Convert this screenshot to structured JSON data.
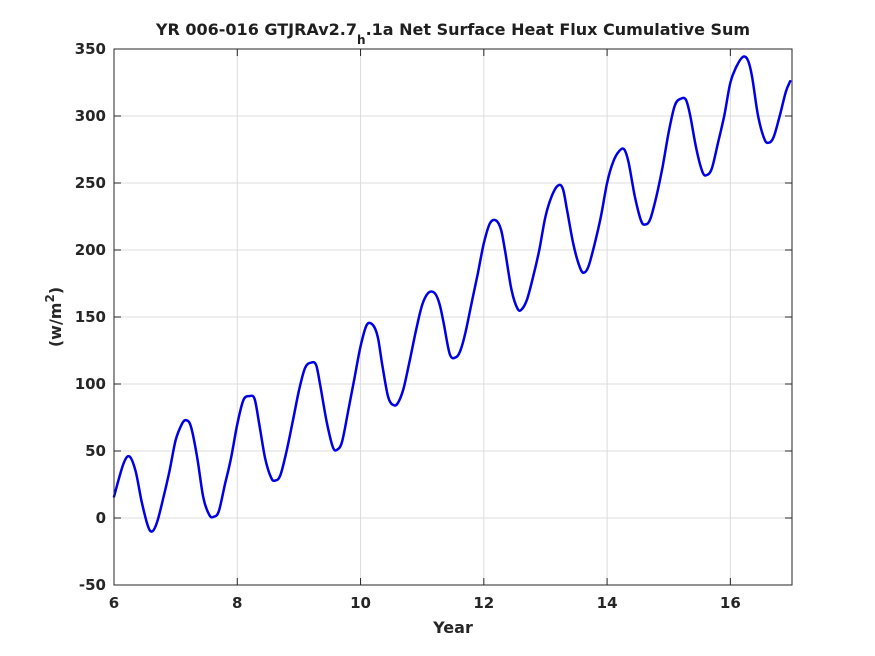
{
  "chart_data": {
    "type": "line",
    "title": {
      "pre": "YR 006-016 GTJRAv2.7",
      "sub": "h",
      "post": ".1a Net Surface Heat Flux  Cumulative Sum"
    },
    "xlabel": "Year",
    "ylabel": {
      "pre": "(w/m",
      "sup": "2",
      "post": ")"
    },
    "xlim": [
      6,
      17
    ],
    "ylim": [
      -50,
      350
    ],
    "xticks": [
      6,
      8,
      10,
      12,
      14,
      16
    ],
    "yticks": [
      -50,
      0,
      50,
      100,
      150,
      200,
      250,
      300,
      350
    ],
    "grid": true,
    "line_color": "#0000e6",
    "series": [
      {
        "x": [
          6.0,
          6.15,
          6.25,
          6.35,
          6.45,
          6.55,
          6.62,
          6.7,
          6.8,
          6.9,
          7.0,
          7.1,
          7.17,
          7.25,
          7.35,
          7.45,
          7.55,
          7.62,
          7.7,
          7.8,
          7.9,
          8.0,
          8.1,
          8.2,
          8.28,
          8.35,
          8.45,
          8.55,
          8.62,
          8.7,
          8.8,
          8.9,
          9.0,
          9.1,
          9.2,
          9.28,
          9.35,
          9.45,
          9.55,
          9.62,
          9.7,
          9.8,
          9.9,
          10.0,
          10.1,
          10.2,
          10.28,
          10.35,
          10.45,
          10.55,
          10.62,
          10.7,
          10.8,
          10.9,
          11.0,
          11.1,
          11.2,
          11.28,
          11.35,
          11.45,
          11.55,
          11.62,
          11.7,
          11.8,
          11.9,
          12.0,
          12.1,
          12.2,
          12.28,
          12.35,
          12.45,
          12.55,
          12.62,
          12.7,
          12.8,
          12.9,
          13.0,
          13.1,
          13.2,
          13.28,
          13.35,
          13.45,
          13.55,
          13.62,
          13.7,
          13.8,
          13.9,
          14.0,
          14.1,
          14.2,
          14.28,
          14.35,
          14.45,
          14.55,
          14.62,
          14.7,
          14.8,
          14.9,
          15.0,
          15.1,
          15.2,
          15.28,
          15.35,
          15.45,
          15.55,
          15.62,
          15.7,
          15.8,
          15.9,
          16.0,
          16.1,
          16.2,
          16.28,
          16.35,
          16.45,
          16.55,
          16.62,
          16.7,
          16.8,
          16.9,
          16.97
        ],
        "y": [
          16,
          40,
          46,
          35,
          12,
          -6,
          -10,
          -3,
          15,
          35,
          58,
          70,
          73,
          68,
          45,
          15,
          2,
          1,
          5,
          25,
          45,
          70,
          88,
          91,
          89,
          72,
          45,
          30,
          28,
          32,
          50,
          72,
          95,
          112,
          116,
          114,
          98,
          72,
          53,
          51,
          57,
          80,
          104,
          128,
          144,
          144,
          135,
          115,
          90,
          84,
          87,
          97,
          118,
          140,
          159,
          168,
          168,
          160,
          145,
          122,
          120,
          125,
          138,
          160,
          182,
          205,
          220,
          222,
          215,
          198,
          170,
          156,
          156,
          163,
          180,
          200,
          225,
          240,
          248,
          246,
          230,
          205,
          188,
          183,
          188,
          205,
          225,
          250,
          266,
          274,
          275,
          265,
          240,
          222,
          219,
          223,
          240,
          262,
          288,
          308,
          313,
          312,
          300,
          275,
          258,
          256,
          261,
          280,
          300,
          325,
          337,
          344,
          342,
          330,
          300,
          283,
          280,
          284,
          300,
          318,
          326
        ]
      }
    ]
  }
}
